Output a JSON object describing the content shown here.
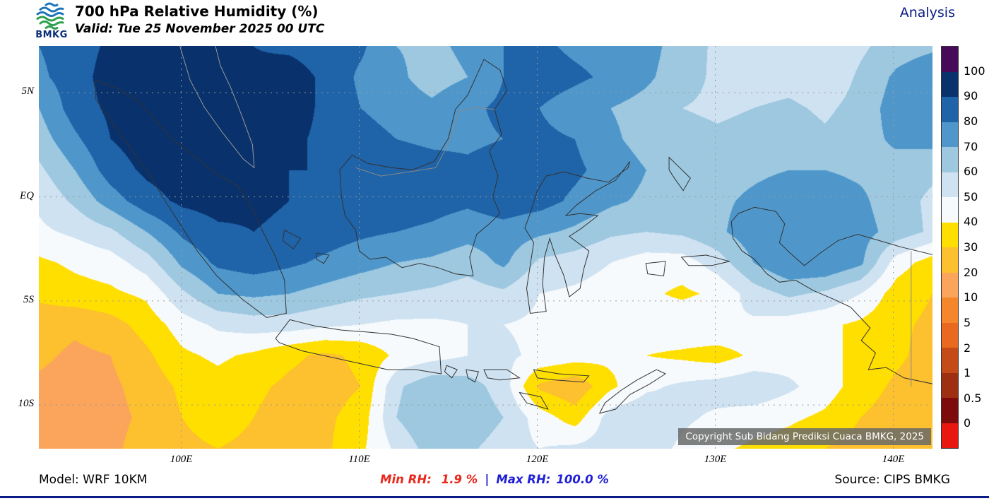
{
  "header": {
    "logo_text": "BMKG",
    "title": "700 hPa Relative Humidity (%)",
    "valid": "Valid: Tue 25 November 2025 00 UTC",
    "analysis_label": "Analysis"
  },
  "axes": {
    "lat_ticks": [
      {
        "label": "5N",
        "lat": 5
      },
      {
        "label": "EQ",
        "lat": 0
      },
      {
        "label": "5S",
        "lat": -5
      },
      {
        "label": "10S",
        "lat": -10
      }
    ],
    "lon_ticks": [
      {
        "label": "100E",
        "lon": 100
      },
      {
        "label": "110E",
        "lon": 110
      },
      {
        "label": "120E",
        "lon": 120
      },
      {
        "label": "130E",
        "lon": 130
      },
      {
        "label": "140E",
        "lon": 140
      }
    ]
  },
  "colorbar": {
    "labels": [
      "100",
      "90",
      "80",
      "70",
      "60",
      "50",
      "40",
      "30",
      "20",
      "10",
      "5",
      "2",
      "1",
      "0.5",
      "0"
    ],
    "segment_colors_top_to_bottom": [
      "#470a59",
      "#09316c",
      "#1f63a8",
      "#4f97cb",
      "#9dc8e0",
      "#cfe2f1",
      "#f7fafc",
      "#ffdf00",
      "#fdc02e",
      "#fba55c",
      "#f5862c",
      "#e8691f",
      "#c44a18",
      "#9e2f10",
      "#7e0b0b",
      "#e8170f"
    ]
  },
  "map": {
    "copyright": "Copyright Sub Bidang Prediksi Cuaca BMKG, 2025"
  },
  "footer": {
    "model": "Model: WRF 10KM",
    "min_label": "Min RH:",
    "min_value": "1.9 %",
    "separator": "|",
    "max_label": "Max RH:",
    "max_value": "100.0 %",
    "source": "Source: CIPS BMKG"
  },
  "chart_data": {
    "type": "heatmap",
    "subtype": "filled_contour_map",
    "title": "700 hPa Relative Humidity (%)",
    "valid_time": "Tue 25 November 2025 00 UTC",
    "units": "%",
    "min_rh": 1.9,
    "max_rh": 100.0,
    "levels": [
      0,
      0.5,
      1,
      2,
      5,
      10,
      20,
      30,
      40,
      50,
      60,
      70,
      80,
      90,
      100
    ],
    "level_colors_low_to_high": [
      "#e8170f",
      "#7e0b0b",
      "#9e2f10",
      "#c44a18",
      "#e8691f",
      "#f5862c",
      "#fba55c",
      "#fdc02e",
      "#ffdf00",
      "#f7fafc",
      "#cfe2f1",
      "#9dc8e0",
      "#4f97cb",
      "#1f63a8",
      "#09316c",
      "#470a59"
    ],
    "lon_range": [
      92.0,
      142.2
    ],
    "lat_range": [
      7.25,
      -12.1
    ],
    "grid_note": "approximate RH field sampled from the map, rows north-to-south (lat 7.25 to -12.1), cols west-to-east (lon 92 to 142)",
    "rh_grid_approx": [
      [
        80,
        85,
        92,
        95,
        95,
        93,
        90,
        88,
        85,
        82,
        70,
        68,
        72,
        80,
        82,
        78,
        76,
        74,
        65,
        58,
        55,
        52,
        52,
        58,
        65,
        68
      ],
      [
        78,
        85,
        95,
        97,
        95,
        92,
        92,
        95,
        88,
        78,
        72,
        66,
        70,
        80,
        85,
        82,
        78,
        72,
        64,
        58,
        55,
        56,
        52,
        62,
        72,
        78
      ],
      [
        70,
        85,
        92,
        96,
        98,
        98,
        95,
        95,
        88,
        80,
        75,
        72,
        78,
        82,
        80,
        75,
        70,
        66,
        60,
        58,
        60,
        62,
        58,
        64,
        75,
        80
      ],
      [
        65,
        78,
        90,
        95,
        98,
        97,
        95,
        92,
        88,
        85,
        80,
        78,
        78,
        80,
        82,
        80,
        72,
        66,
        64,
        62,
        64,
        66,
        62,
        66,
        72,
        74
      ],
      [
        58,
        70,
        85,
        92,
        95,
        95,
        92,
        90,
        90,
        88,
        86,
        84,
        82,
        85,
        86,
        82,
        76,
        70,
        66,
        66,
        68,
        70,
        70,
        68,
        66,
        62
      ],
      [
        52,
        62,
        75,
        86,
        92,
        94,
        92,
        90,
        88,
        86,
        86,
        84,
        82,
        86,
        84,
        78,
        72,
        68,
        66,
        68,
        72,
        76,
        76,
        72,
        64,
        58
      ],
      [
        48,
        52,
        58,
        70,
        82,
        88,
        90,
        88,
        85,
        82,
        80,
        78,
        74,
        76,
        72,
        68,
        62,
        60,
        62,
        68,
        76,
        80,
        78,
        74,
        66,
        58
      ],
      [
        38,
        42,
        45,
        55,
        72,
        82,
        85,
        82,
        78,
        74,
        70,
        68,
        64,
        72,
        58,
        55,
        50,
        45,
        45,
        55,
        70,
        80,
        80,
        72,
        45,
        35
      ],
      [
        32,
        36,
        38,
        42,
        58,
        70,
        72,
        70,
        66,
        62,
        60,
        58,
        55,
        58,
        50,
        48,
        45,
        42,
        38,
        42,
        55,
        62,
        58,
        50,
        35,
        30
      ],
      [
        25,
        22,
        26,
        34,
        45,
        52,
        55,
        55,
        52,
        50,
        48,
        48,
        50,
        50,
        48,
        45,
        44,
        46,
        48,
        50,
        48,
        45,
        42,
        38,
        32,
        28
      ],
      [
        22,
        18,
        20,
        28,
        38,
        42,
        38,
        32,
        28,
        32,
        42,
        46,
        50,
        52,
        48,
        45,
        42,
        40,
        38,
        35,
        42,
        45,
        42,
        38,
        32,
        26
      ],
      [
        18,
        16,
        18,
        24,
        32,
        36,
        32,
        28,
        26,
        30,
        58,
        68,
        65,
        55,
        28,
        22,
        38,
        48,
        52,
        55,
        58,
        52,
        45,
        35,
        28,
        24
      ],
      [
        16,
        15,
        17,
        22,
        30,
        34,
        30,
        26,
        28,
        34,
        60,
        70,
        68,
        60,
        45,
        35,
        55,
        58,
        52,
        48,
        45,
        42,
        38,
        30,
        25,
        22
      ],
      [
        15,
        16,
        18,
        24,
        28,
        30,
        28,
        24,
        28,
        38,
        52,
        65,
        62,
        55,
        50,
        52,
        55,
        55,
        48,
        42,
        38,
        35,
        30,
        26,
        22,
        20
      ]
    ]
  }
}
